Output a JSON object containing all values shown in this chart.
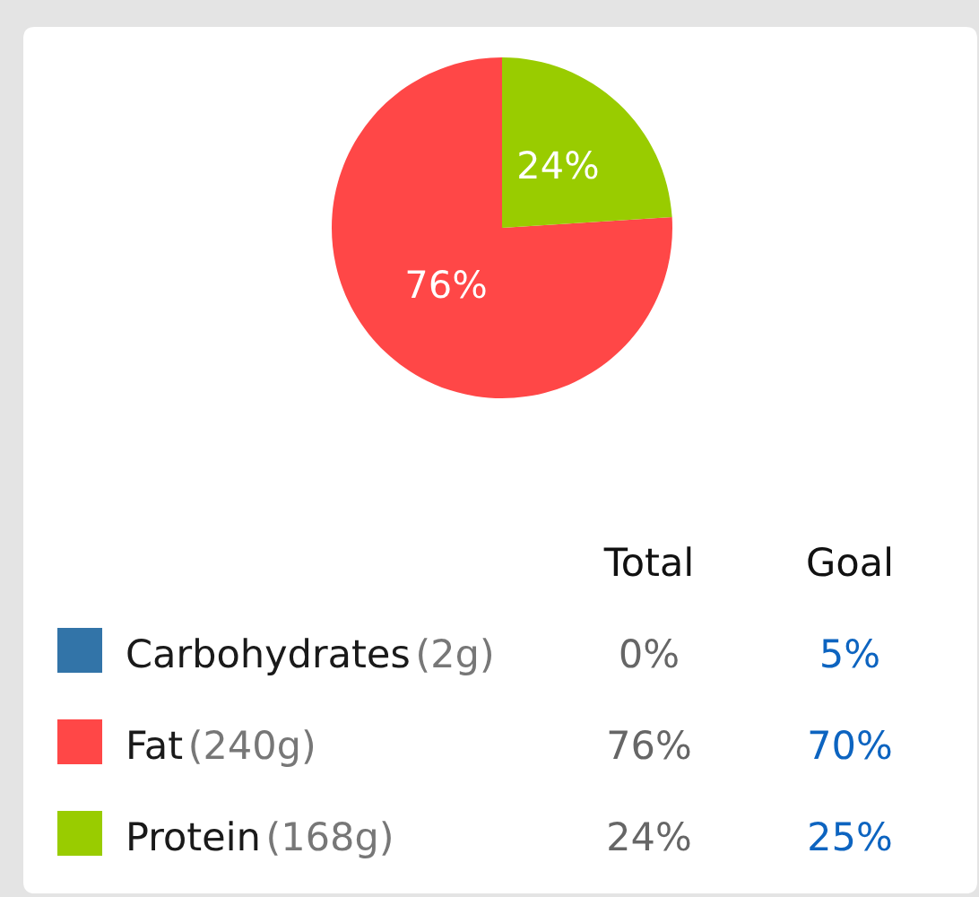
{
  "chart_data": [
    {
      "type": "pie",
      "categories": [
        "Carbohydrates",
        "Fat",
        "Protein"
      ],
      "values": [
        0,
        76,
        24
      ],
      "colors": [
        "#3274a8",
        "#ff4747",
        "#99cc00"
      ],
      "value_labels": [
        null,
        "76%",
        "24%"
      ],
      "legend": "bottom"
    },
    {
      "type": "other",
      "categories": [
        "Total",
        "Goal"
      ],
      "annotations": [
        "(2g)",
        "0%",
        "5%",
        "(240g)",
        "76%",
        "70%",
        "(168g)",
        "24%",
        "25%"
      ]
    }
  ]
}
